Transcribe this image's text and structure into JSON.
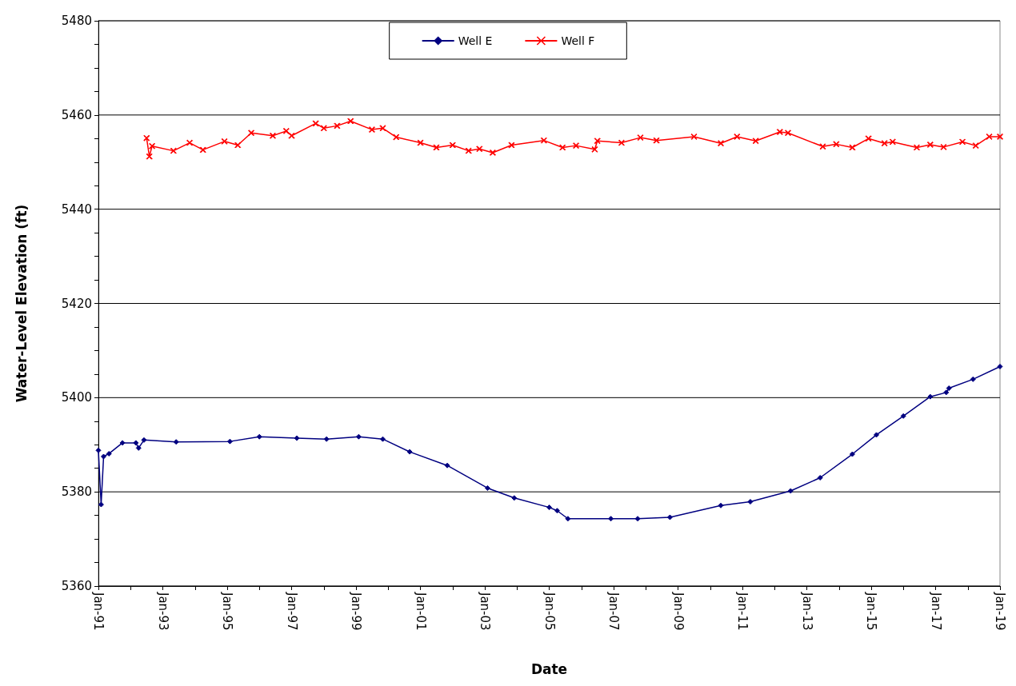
{
  "chart_data": {
    "type": "line",
    "xlabel": "Date",
    "ylabel": "Water-Level Elevation (ft)",
    "xlim": [
      "1991-01",
      "2019-01"
    ],
    "xticks": [
      {
        "value": "1991-01",
        "label": "Jan-91"
      },
      {
        "value": "1992-01",
        "label": null
      },
      {
        "value": "1993-01",
        "label": "Jan-93"
      },
      {
        "value": "1994-01",
        "label": null
      },
      {
        "value": "1995-01",
        "label": "Jan-95"
      },
      {
        "value": "1996-01",
        "label": null
      },
      {
        "value": "1997-01",
        "label": "Jan-97"
      },
      {
        "value": "1998-01",
        "label": null
      },
      {
        "value": "1999-01",
        "label": "Jan-99"
      },
      {
        "value": "2000-01",
        "label": null
      },
      {
        "value": "2001-01",
        "label": "Jan-01"
      },
      {
        "value": "2002-01",
        "label": null
      },
      {
        "value": "2003-01",
        "label": "Jan-03"
      },
      {
        "value": "2004-01",
        "label": null
      },
      {
        "value": "2005-01",
        "label": "Jan-05"
      },
      {
        "value": "2006-01",
        "label": null
      },
      {
        "value": "2007-01",
        "label": "Jan-07"
      },
      {
        "value": "2008-01",
        "label": null
      },
      {
        "value": "2009-01",
        "label": "Jan-09"
      },
      {
        "value": "2010-01",
        "label": null
      },
      {
        "value": "2011-01",
        "label": "Jan-11"
      },
      {
        "value": "2012-01",
        "label": null
      },
      {
        "value": "2013-01",
        "label": "Jan-13"
      },
      {
        "value": "2014-01",
        "label": null
      },
      {
        "value": "2015-01",
        "label": "Jan-15"
      },
      {
        "value": "2016-01",
        "label": null
      },
      {
        "value": "2017-01",
        "label": "Jan-17"
      },
      {
        "value": "2018-01",
        "label": null
      },
      {
        "value": "2019-01",
        "label": "Jan-19"
      }
    ],
    "ylim": [
      5360,
      5480
    ],
    "yticks": [
      5360,
      {
        "value": 5365,
        "label": null
      },
      {
        "value": 5370,
        "label": null
      },
      {
        "value": 5375,
        "label": null
      },
      5380,
      {
        "value": 5385,
        "label": null
      },
      {
        "value": 5390,
        "label": null
      },
      {
        "value": 5395,
        "label": null
      },
      5400,
      {
        "value": 5405,
        "label": null
      },
      {
        "value": 5410,
        "label": null
      },
      {
        "value": 5415,
        "label": null
      },
      5420,
      {
        "value": 5425,
        "label": null
      },
      {
        "value": 5430,
        "label": null
      },
      {
        "value": 5435,
        "label": null
      },
      5440,
      {
        "value": 5445,
        "label": null
      },
      {
        "value": 5450,
        "label": null
      },
      {
        "value": 5455,
        "label": null
      },
      5460,
      {
        "value": 5465,
        "label": null
      },
      {
        "value": 5470,
        "label": null
      },
      {
        "value": 5475,
        "label": null
      },
      5480
    ],
    "grid": "y",
    "legend": "top",
    "series": [
      {
        "name": "Well E",
        "color": "#000080",
        "marker": "diamond",
        "x": [
          "1991-01",
          "1991-02",
          "1991-03",
          "1991-05",
          "1991-10",
          "1992-03",
          "1992-04",
          "1992-06",
          "1993-06",
          "1995-02",
          "1996-01",
          "1997-03",
          "1998-02",
          "1999-02",
          "1999-11",
          "2000-09",
          "2001-11",
          "2003-02",
          "2003-12",
          "2005-01",
          "2005-04",
          "2005-08",
          "2006-12",
          "2007-10",
          "2008-10",
          "2010-05",
          "2011-04",
          "2012-07",
          "2013-06",
          "2014-06",
          "2015-03",
          "2016-01",
          "2016-11",
          "2017-05",
          "2017-06",
          "2018-03",
          "2019-01"
        ],
        "values": [
          5388.8,
          5377.3,
          5387.5,
          5388.1,
          5390.4,
          5390.4,
          5389.3,
          5391,
          5390.6,
          5390.7,
          5391.7,
          5391.4,
          5391.2,
          5391.7,
          5391.2,
          5388.5,
          5385.6,
          5380.8,
          5378.7,
          5376.7,
          5376,
          5374.3,
          5374.3,
          5374.3,
          5374.6,
          5377.1,
          5377.9,
          5380.2,
          5383,
          5388,
          5392.1,
          5396.1,
          5400.2,
          5401.1,
          5402,
          5403.9,
          5406.6
        ]
      },
      {
        "name": "Well F",
        "color": "#ff0000",
        "marker": "cross",
        "x": [
          "1992-07",
          "1992-08",
          "1992-09",
          "1993-05",
          "1993-11",
          "1994-04",
          "1994-12",
          "1995-05",
          "1995-10",
          "1996-06",
          "1996-11",
          "1997-01",
          "1997-10",
          "1998-01",
          "1998-06",
          "1998-11",
          "1999-07",
          "1999-11",
          "2000-04",
          "2001-01",
          "2001-07",
          "2002-01",
          "2002-07",
          "2002-11",
          "2003-04",
          "2003-11",
          "2004-11",
          "2005-06",
          "2005-11",
          "2006-06",
          "2006-07",
          "2007-04",
          "2007-11",
          "2008-05",
          "2009-07",
          "2010-05",
          "2010-11",
          "2011-06",
          "2012-03",
          "2012-06",
          "2013-07",
          "2013-12",
          "2014-06",
          "2014-12",
          "2015-06",
          "2015-09",
          "2016-06",
          "2016-11",
          "2017-04",
          "2017-11",
          "2018-04",
          "2018-09",
          "2019-01"
        ],
        "values": [
          5455.1,
          5451.2,
          5453.4,
          5452.4,
          5454.1,
          5452.6,
          5454.4,
          5453.6,
          5456.2,
          5455.6,
          5456.6,
          5455.6,
          5458.2,
          5457.2,
          5457.7,
          5458.7,
          5456.9,
          5457.2,
          5455.3,
          5454.1,
          5453.1,
          5453.6,
          5452.4,
          5452.8,
          5452,
          5453.6,
          5454.6,
          5453.1,
          5453.5,
          5452.7,
          5454.5,
          5454.1,
          5455.2,
          5454.6,
          5455.4,
          5454,
          5455.4,
          5454.5,
          5456.4,
          5456.2,
          5453.3,
          5453.8,
          5453.1,
          5455,
          5454,
          5454.3,
          5453.1,
          5453.7,
          5453.2,
          5454.3,
          5453.5,
          5455.4,
          5455.4
        ]
      }
    ]
  }
}
